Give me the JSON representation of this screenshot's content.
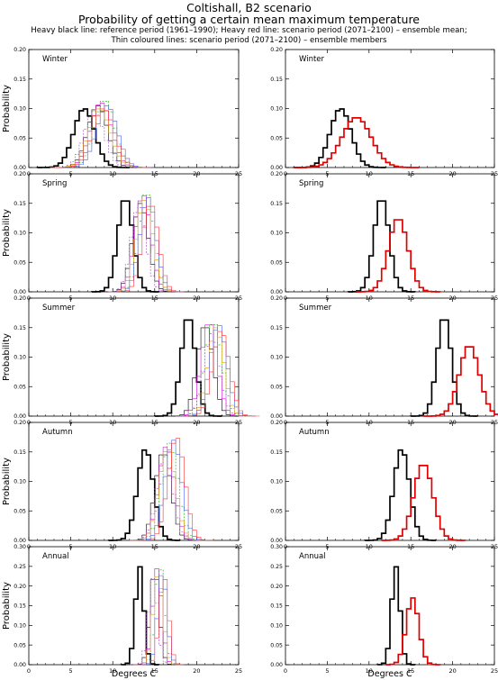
{
  "header": {
    "title": "Coltishall, B2 scenario",
    "subtitle": "Probability of getting a certain mean maximum temperature",
    "note1": "Heavy black line: reference period (1961–1990); Heavy red line: scenario period (2071–2100) – ensemble mean;",
    "note2": "Thin coloured lines: scenario period (2071–2100) – ensemble members"
  },
  "colors": {
    "reference": "#000000",
    "scenario_mean": "#e00000",
    "members": [
      "#000000",
      "#e000e0",
      "#00b000",
      "#e0a000",
      "#4060ff",
      "#a040c0",
      "#ff3030",
      "#707070"
    ]
  },
  "chart_data": [
    {
      "type": "line",
      "panel": "left",
      "season": "Winter",
      "ylabel": "Probability",
      "xlim": [
        0,
        25
      ],
      "ylim": [
        0,
        0.2
      ],
      "yticks": [
        "0.00",
        "0.05",
        "0.10",
        "0.15",
        "0.20"
      ],
      "xticks": [
        0,
        5,
        10,
        15,
        20,
        25
      ],
      "series": [
        {
          "role": "reference",
          "mean": 6.6,
          "sd": 1.25,
          "peak": 0.1
        },
        {
          "role": "member",
          "mean": 8.2,
          "sd": 1.2,
          "peak": 0.105
        },
        {
          "role": "member",
          "mean": 8.6,
          "sd": 1.25,
          "peak": 0.11
        },
        {
          "role": "member",
          "mean": 9.0,
          "sd": 1.2,
          "peak": 0.115
        },
        {
          "role": "member",
          "mean": 8.4,
          "sd": 1.3,
          "peak": 0.1
        },
        {
          "role": "member",
          "mean": 9.3,
          "sd": 1.25,
          "peak": 0.105
        },
        {
          "role": "member",
          "mean": 7.8,
          "sd": 1.2,
          "peak": 0.095
        },
        {
          "role": "member",
          "mean": 8.9,
          "sd": 1.3,
          "peak": 0.1
        }
      ]
    },
    {
      "type": "line",
      "panel": "right",
      "season": "Winter",
      "xlim": [
        0,
        25
      ],
      "ylim": [
        0,
        0.2
      ],
      "yticks": [
        "0.00",
        "0.05",
        "0.10",
        "0.15",
        "0.20"
      ],
      "xticks": [
        0,
        5,
        10,
        15,
        20,
        25
      ],
      "series": [
        {
          "role": "reference",
          "mean": 6.6,
          "sd": 1.25,
          "peak": 0.1
        },
        {
          "role": "scenario_mean",
          "mean": 8.5,
          "sd": 1.75,
          "peak": 0.085
        }
      ]
    },
    {
      "type": "line",
      "panel": "left",
      "season": "Spring",
      "ylabel": "Probability",
      "xlim": [
        0,
        25
      ],
      "ylim": [
        0,
        0.2
      ],
      "yticks": [
        "0.00",
        "0.05",
        "0.10",
        "0.15",
        "0.20"
      ],
      "xticks": [
        0,
        5,
        10,
        15,
        20,
        25
      ],
      "series": [
        {
          "role": "reference",
          "mean": 11.5,
          "sd": 0.9,
          "peak": 0.16
        },
        {
          "role": "member",
          "mean": 13.3,
          "sd": 0.95,
          "peak": 0.15
        },
        {
          "role": "member",
          "mean": 13.6,
          "sd": 0.95,
          "peak": 0.165
        },
        {
          "role": "member",
          "mean": 14.0,
          "sd": 0.9,
          "peak": 0.17
        },
        {
          "role": "member",
          "mean": 13.8,
          "sd": 1.0,
          "peak": 0.155
        },
        {
          "role": "member",
          "mean": 14.2,
          "sd": 0.95,
          "peak": 0.16
        },
        {
          "role": "member",
          "mean": 13.1,
          "sd": 0.9,
          "peak": 0.145
        },
        {
          "role": "member",
          "mean": 14.5,
          "sd": 0.95,
          "peak": 0.15
        }
      ]
    },
    {
      "type": "line",
      "panel": "right",
      "season": "Spring",
      "xlim": [
        0,
        25
      ],
      "ylim": [
        0,
        0.2
      ],
      "yticks": [
        "0.00",
        "0.05",
        "0.10",
        "0.15",
        "0.20"
      ],
      "xticks": [
        0,
        5,
        10,
        15,
        20,
        25
      ],
      "series": [
        {
          "role": "reference",
          "mean": 11.5,
          "sd": 0.9,
          "peak": 0.16
        },
        {
          "role": "scenario_mean",
          "mean": 13.5,
          "sd": 1.15,
          "peak": 0.125
        }
      ]
    },
    {
      "type": "line",
      "panel": "left",
      "season": "Summer",
      "ylabel": "Probability",
      "xlim": [
        0,
        25
      ],
      "ylim": [
        0,
        0.2
      ],
      "yticks": [
        "0.00",
        "0.05",
        "0.10",
        "0.15",
        "0.20"
      ],
      "xticks": [
        0,
        5,
        10,
        15,
        20,
        25
      ],
      "series": [
        {
          "role": "reference",
          "mean": 19.0,
          "sd": 0.85,
          "peak": 0.17
        },
        {
          "role": "member",
          "mean": 21.0,
          "sd": 0.95,
          "peak": 0.155
        },
        {
          "role": "member",
          "mean": 21.5,
          "sd": 0.95,
          "peak": 0.16
        },
        {
          "role": "member",
          "mean": 22.0,
          "sd": 1.0,
          "peak": 0.16
        },
        {
          "role": "member",
          "mean": 22.3,
          "sd": 0.95,
          "peak": 0.15
        },
        {
          "role": "member",
          "mean": 22.6,
          "sd": 1.0,
          "peak": 0.155
        },
        {
          "role": "member",
          "mean": 21.8,
          "sd": 0.95,
          "peak": 0.14
        },
        {
          "role": "member",
          "mean": 22.9,
          "sd": 1.0,
          "peak": 0.145
        }
      ]
    },
    {
      "type": "line",
      "panel": "right",
      "season": "Summer",
      "xlim": [
        0,
        25
      ],
      "ylim": [
        0,
        0.2
      ],
      "yticks": [
        "0.00",
        "0.05",
        "0.10",
        "0.15",
        "0.20"
      ],
      "xticks": [
        0,
        5,
        10,
        15,
        20,
        25
      ],
      "series": [
        {
          "role": "reference",
          "mean": 19.0,
          "sd": 0.85,
          "peak": 0.17
        },
        {
          "role": "scenario_mean",
          "mean": 22.0,
          "sd": 1.2,
          "peak": 0.12
        }
      ]
    },
    {
      "type": "line",
      "panel": "left",
      "season": "Autumn",
      "ylabel": "Probability",
      "xlim": [
        0,
        25
      ],
      "ylim": [
        0,
        0.2
      ],
      "yticks": [
        "0.00",
        "0.05",
        "0.10",
        "0.15",
        "0.20"
      ],
      "xticks": [
        0,
        5,
        10,
        15,
        20,
        25
      ],
      "series": [
        {
          "role": "reference",
          "mean": 13.9,
          "sd": 0.95,
          "peak": 0.155
        },
        {
          "role": "member",
          "mean": 16.0,
          "sd": 0.95,
          "peak": 0.15
        },
        {
          "role": "member",
          "mean": 16.4,
          "sd": 0.95,
          "peak": 0.16
        },
        {
          "role": "member",
          "mean": 16.8,
          "sd": 1.0,
          "peak": 0.165
        },
        {
          "role": "member",
          "mean": 16.5,
          "sd": 1.0,
          "peak": 0.155
        },
        {
          "role": "member",
          "mean": 17.2,
          "sd": 1.0,
          "peak": 0.17
        },
        {
          "role": "member",
          "mean": 16.2,
          "sd": 0.95,
          "peak": 0.145
        },
        {
          "role": "member",
          "mean": 17.6,
          "sd": 1.0,
          "peak": 0.175
        }
      ]
    },
    {
      "type": "line",
      "panel": "right",
      "season": "Autumn",
      "xlim": [
        0,
        25
      ],
      "ylim": [
        0,
        0.2
      ],
      "yticks": [
        "0.00",
        "0.05",
        "0.10",
        "0.15",
        "0.20"
      ],
      "xticks": [
        0,
        5,
        10,
        15,
        20,
        25
      ],
      "series": [
        {
          "role": "reference",
          "mean": 13.9,
          "sd": 0.95,
          "peak": 0.155
        },
        {
          "role": "scenario_mean",
          "mean": 16.5,
          "sd": 1.15,
          "peak": 0.13
        }
      ]
    },
    {
      "type": "line",
      "panel": "left",
      "season": "Annual",
      "ylabel": "Probability",
      "xlim": [
        0,
        25
      ],
      "ylim": [
        0,
        0.3
      ],
      "yticks": [
        "0.00",
        "0.05",
        "0.10",
        "0.15",
        "0.20",
        "0.25",
        "0.30"
      ],
      "xticks": [
        0,
        5,
        10,
        15,
        20,
        25
      ],
      "series": [
        {
          "role": "reference",
          "mean": 13.2,
          "sd": 0.5,
          "peak": 0.25
        },
        {
          "role": "member",
          "mean": 15.0,
          "sd": 0.55,
          "peak": 0.24
        },
        {
          "role": "member",
          "mean": 15.3,
          "sd": 0.55,
          "peak": 0.245
        },
        {
          "role": "member",
          "mean": 15.6,
          "sd": 0.55,
          "peak": 0.25
        },
        {
          "role": "member",
          "mean": 15.4,
          "sd": 0.6,
          "peak": 0.23
        },
        {
          "role": "member",
          "mean": 15.9,
          "sd": 0.55,
          "peak": 0.235
        },
        {
          "role": "member",
          "mean": 14.8,
          "sd": 0.55,
          "peak": 0.22
        },
        {
          "role": "member",
          "mean": 16.1,
          "sd": 0.55,
          "peak": 0.225
        }
      ]
    },
    {
      "type": "line",
      "panel": "right",
      "season": "Annual",
      "xlim": [
        0,
        25
      ],
      "ylim": [
        0,
        0.3
      ],
      "yticks": [
        "0.00",
        "0.05",
        "0.10",
        "0.15",
        "0.20",
        "0.25",
        "0.30"
      ],
      "xticks": [
        0,
        5,
        10,
        15,
        20,
        25
      ],
      "series": [
        {
          "role": "reference",
          "mean": 13.2,
          "sd": 0.5,
          "peak": 0.25
        },
        {
          "role": "scenario_mean",
          "mean": 15.2,
          "sd": 0.75,
          "peak": 0.17
        }
      ]
    }
  ],
  "xlabel": "Degrees C"
}
